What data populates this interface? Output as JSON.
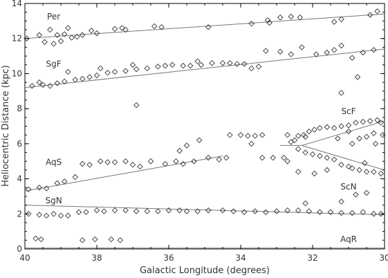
{
  "chart_data": {
    "type": "scatter",
    "title": "",
    "xlabel": "Galactic Longitude (degrees)",
    "ylabel": "Heliocentric Distance (kpc)",
    "xlim": [
      40,
      30
    ],
    "ylim": [
      0,
      14
    ],
    "x_ticks": [
      40,
      38,
      36,
      34,
      32,
      30
    ],
    "y_ticks": [
      0,
      2,
      4,
      6,
      8,
      10,
      12,
      14
    ],
    "grid": false,
    "marker": "diamond",
    "colors": {
      "axis": "#000000",
      "marker": "#333333",
      "line": "#777777",
      "text": "#333333"
    },
    "arm_labels": [
      {
        "name": "Per",
        "x": 39.2,
        "y": 13.1
      },
      {
        "name": "SgF",
        "x": 39.2,
        "y": 10.4
      },
      {
        "name": "ScF",
        "x": 31.0,
        "y": 7.7
      },
      {
        "name": "AqS",
        "x": 39.2,
        "y": 4.8
      },
      {
        "name": "ScN",
        "x": 31.0,
        "y": 3.4
      },
      {
        "name": "SgN",
        "x": 39.2,
        "y": 2.6
      },
      {
        "name": "AqR",
        "x": 31.0,
        "y": 0.4
      }
    ],
    "arm_lines": [
      {
        "name": "Per",
        "x": [
          40,
          30
        ],
        "y": [
          12.0,
          13.4
        ]
      },
      {
        "name": "SgF",
        "x": [
          40,
          30
        ],
        "y": [
          9.2,
          11.4
        ]
      },
      {
        "name": "AqS",
        "x": [
          40,
          34.5
        ],
        "y": [
          3.3,
          5.3
        ]
      },
      {
        "name": "ScF",
        "x": [
          32.9,
          32.3,
          30
        ],
        "y": [
          5.9,
          5.9,
          7.3
        ]
      },
      {
        "name": "ScN",
        "x": [
          32.3,
          30
        ],
        "y": [
          5.9,
          4.5
        ]
      },
      {
        "name": "SgN",
        "x": [
          40,
          30
        ],
        "y": [
          2.5,
          1.95
        ]
      },
      {
        "name": "AqR",
        "x": [
          40,
          30
        ],
        "y": [
          0.05,
          0.05
        ]
      }
    ],
    "points": [
      [
        39.95,
        12.0
      ],
      [
        39.6,
        12.2
      ],
      [
        39.45,
        11.8
      ],
      [
        39.2,
        11.7
      ],
      [
        39.1,
        12.2
      ],
      [
        38.9,
        12.25
      ],
      [
        38.7,
        12.05
      ],
      [
        38.55,
        12.1
      ],
      [
        38.4,
        12.2
      ],
      [
        38.15,
        12.45
      ],
      [
        38.0,
        12.3
      ],
      [
        37.5,
        12.55
      ],
      [
        37.2,
        12.5
      ],
      [
        36.4,
        12.7
      ],
      [
        34.9,
        12.65
      ],
      [
        33.7,
        12.85
      ],
      [
        33.25,
        13.05
      ],
      [
        33.2,
        12.9
      ],
      [
        32.9,
        13.2
      ],
      [
        32.6,
        13.25
      ],
      [
        32.35,
        13.2
      ],
      [
        31.4,
        12.95
      ],
      [
        31.2,
        13.1
      ],
      [
        30.4,
        13.35
      ],
      [
        30.2,
        13.55
      ],
      [
        39.3,
        12.5
      ],
      [
        39.0,
        11.85
      ],
      [
        38.8,
        12.6
      ],
      [
        37.3,
        12.6
      ],
      [
        36.2,
        12.65
      ],
      [
        39.8,
        9.3
      ],
      [
        39.5,
        9.35
      ],
      [
        39.3,
        9.3
      ],
      [
        39.1,
        9.45
      ],
      [
        38.9,
        9.55
      ],
      [
        38.6,
        9.65
      ],
      [
        38.4,
        9.7
      ],
      [
        38.2,
        9.8
      ],
      [
        38.0,
        9.9
      ],
      [
        37.7,
        10.05
      ],
      [
        37.5,
        10.1
      ],
      [
        37.2,
        10.15
      ],
      [
        36.9,
        10.25
      ],
      [
        36.6,
        10.3
      ],
      [
        36.3,
        10.4
      ],
      [
        36.1,
        10.45
      ],
      [
        35.9,
        10.5
      ],
      [
        35.6,
        10.45
      ],
      [
        35.4,
        10.45
      ],
      [
        35.1,
        10.5
      ],
      [
        34.8,
        10.6
      ],
      [
        34.5,
        10.6
      ],
      [
        34.3,
        10.6
      ],
      [
        34.1,
        10.55
      ],
      [
        33.9,
        10.55
      ],
      [
        33.5,
        10.4
      ],
      [
        33.3,
        11.3
      ],
      [
        32.9,
        11.25
      ],
      [
        32.6,
        11.1
      ],
      [
        32.3,
        11.5
      ],
      [
        31.9,
        11.1
      ],
      [
        31.6,
        11.2
      ],
      [
        31.4,
        11.35
      ],
      [
        31.2,
        11.6
      ],
      [
        30.9,
        10.9
      ],
      [
        30.6,
        11.2
      ],
      [
        30.3,
        11.35
      ],
      [
        31.2,
        8.9
      ],
      [
        30.75,
        9.8
      ],
      [
        36.9,
        8.2
      ],
      [
        39.6,
        9.5
      ],
      [
        38.8,
        10.1
      ],
      [
        37.9,
        10.3
      ],
      [
        37.0,
        10.5
      ],
      [
        35.2,
        10.7
      ],
      [
        33.7,
        10.3
      ],
      [
        39.9,
        3.4
      ],
      [
        39.6,
        3.5
      ],
      [
        39.4,
        3.45
      ],
      [
        39.1,
        3.75
      ],
      [
        38.9,
        3.85
      ],
      [
        38.6,
        4.1
      ],
      [
        38.4,
        4.85
      ],
      [
        38.2,
        4.8
      ],
      [
        37.9,
        5.0
      ],
      [
        37.7,
        4.95
      ],
      [
        37.5,
        4.95
      ],
      [
        37.2,
        5.0
      ],
      [
        37.0,
        4.8
      ],
      [
        36.8,
        4.7
      ],
      [
        36.5,
        5.0
      ],
      [
        36.1,
        4.85
      ],
      [
        35.8,
        5.0
      ],
      [
        35.6,
        4.85
      ],
      [
        35.3,
        5.0
      ],
      [
        34.9,
        5.2
      ],
      [
        34.6,
        5.1
      ],
      [
        34.4,
        5.2
      ],
      [
        35.7,
        5.6
      ],
      [
        35.5,
        5.9
      ],
      [
        35.15,
        6.2
      ],
      [
        34.3,
        6.5
      ],
      [
        34.0,
        6.5
      ],
      [
        33.8,
        6.45
      ],
      [
        33.6,
        6.45
      ],
      [
        33.4,
        6.5
      ],
      [
        33.7,
        6.0
      ],
      [
        33.4,
        5.2
      ],
      [
        33.1,
        5.2
      ],
      [
        32.8,
        5.2
      ],
      [
        32.7,
        6.5
      ],
      [
        32.4,
        6.45
      ],
      [
        32.2,
        6.4
      ],
      [
        32.6,
        6.1
      ],
      [
        32.5,
        6.2
      ],
      [
        32.25,
        6.5
      ],
      [
        32.1,
        6.7
      ],
      [
        31.95,
        6.8
      ],
      [
        31.8,
        6.9
      ],
      [
        31.6,
        6.95
      ],
      [
        31.4,
        6.9
      ],
      [
        31.2,
        7.0
      ],
      [
        31.0,
        7.05
      ],
      [
        30.8,
        7.2
      ],
      [
        30.6,
        7.25
      ],
      [
        30.4,
        7.3
      ],
      [
        30.2,
        7.35
      ],
      [
        30.1,
        7.2
      ],
      [
        31.0,
        6.7
      ],
      [
        30.7,
        6.3
      ],
      [
        30.3,
        6.6
      ],
      [
        30.05,
        6.5
      ],
      [
        30.25,
        6.0
      ],
      [
        30.5,
        6.4
      ],
      [
        31.3,
        6.3
      ],
      [
        30.9,
        6.0
      ],
      [
        32.4,
        5.7
      ],
      [
        32.2,
        5.5
      ],
      [
        32.0,
        5.4
      ],
      [
        31.8,
        5.3
      ],
      [
        31.6,
        5.2
      ],
      [
        31.4,
        5.1
      ],
      [
        31.2,
        4.8
      ],
      [
        31.0,
        4.7
      ],
      [
        30.9,
        4.6
      ],
      [
        30.7,
        4.5
      ],
      [
        30.5,
        4.4
      ],
      [
        30.3,
        4.4
      ],
      [
        30.1,
        4.3
      ],
      [
        32.7,
        5.0
      ],
      [
        32.4,
        4.4
      ],
      [
        31.95,
        4.3
      ],
      [
        31.6,
        4.5
      ],
      [
        30.55,
        4.9
      ],
      [
        30.8,
        3.1
      ],
      [
        39.9,
        2.0
      ],
      [
        39.6,
        1.95
      ],
      [
        39.4,
        1.9
      ],
      [
        39.2,
        2.0
      ],
      [
        39.0,
        1.9
      ],
      [
        38.8,
        1.9
      ],
      [
        38.5,
        2.1
      ],
      [
        38.3,
        2.1
      ],
      [
        38.0,
        2.2
      ],
      [
        37.8,
        2.15
      ],
      [
        37.5,
        2.2
      ],
      [
        37.2,
        2.2
      ],
      [
        36.9,
        2.15
      ],
      [
        36.6,
        2.15
      ],
      [
        36.3,
        2.15
      ],
      [
        36.0,
        2.2
      ],
      [
        35.7,
        2.2
      ],
      [
        35.5,
        2.15
      ],
      [
        35.2,
        2.15
      ],
      [
        34.9,
        2.2
      ],
      [
        34.5,
        2.2
      ],
      [
        34.2,
        2.15
      ],
      [
        33.9,
        2.1
      ],
      [
        33.6,
        2.15
      ],
      [
        33.3,
        2.1
      ],
      [
        33.0,
        2.15
      ],
      [
        32.7,
        2.2
      ],
      [
        32.4,
        2.2
      ],
      [
        32.1,
        2.15
      ],
      [
        31.8,
        2.1
      ],
      [
        31.5,
        2.1
      ],
      [
        31.2,
        2.05
      ],
      [
        30.9,
        2.05
      ],
      [
        30.6,
        2.1
      ],
      [
        30.3,
        2.0
      ],
      [
        30.1,
        2.0
      ],
      [
        39.7,
        0.6
      ],
      [
        39.55,
        0.55
      ],
      [
        38.4,
        0.5
      ],
      [
        38.05,
        0.55
      ],
      [
        37.6,
        0.55
      ],
      [
        37.35,
        0.5
      ],
      [
        31.2,
        2.7
      ],
      [
        32.2,
        2.6
      ],
      [
        30.5,
        3.2
      ]
    ]
  }
}
